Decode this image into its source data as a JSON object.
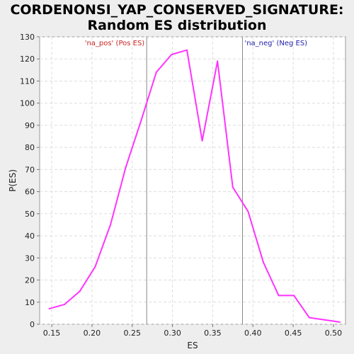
{
  "chart_data": {
    "type": "line",
    "title": "CORDENONSI_YAP_CONSERVED_SIGNATURE:",
    "subtitle": "Random ES distribution",
    "xlabel": "ES",
    "ylabel": "P(ES)",
    "xlim": [
      0.135,
      0.515
    ],
    "ylim": [
      0,
      130
    ],
    "xticks": [
      "0.15",
      "0.20",
      "0.25",
      "0.30",
      "0.35",
      "0.40",
      "0.45",
      "0.50"
    ],
    "yticks": [
      "0",
      "10",
      "20",
      "30",
      "40",
      "50",
      "60",
      "70",
      "80",
      "90",
      "100",
      "110",
      "120",
      "130"
    ],
    "grid": true,
    "series": [
      {
        "color": "#ff33ff",
        "x": [
          0.147,
          0.166,
          0.185,
          0.204,
          0.223,
          0.242,
          0.261,
          0.28,
          0.299,
          0.318,
          0.337,
          0.356,
          0.375,
          0.394,
          0.413,
          0.432,
          0.451,
          0.47,
          0.489,
          0.508
        ],
        "y": [
          7,
          9,
          15,
          26,
          45,
          71,
          92,
          114,
          122,
          124,
          83,
          119,
          62,
          51,
          28,
          13,
          13,
          3,
          2,
          1
        ]
      }
    ],
    "markers": [
      {
        "x": 0.268,
        "label": "'na_pos' (Pos ES)",
        "color": "#cc2222",
        "align": "left-of-line"
      },
      {
        "x": 0.387,
        "label": "'na_neg' (Neg ES)",
        "color": "#2222aa",
        "align": "right-of-line"
      }
    ]
  }
}
